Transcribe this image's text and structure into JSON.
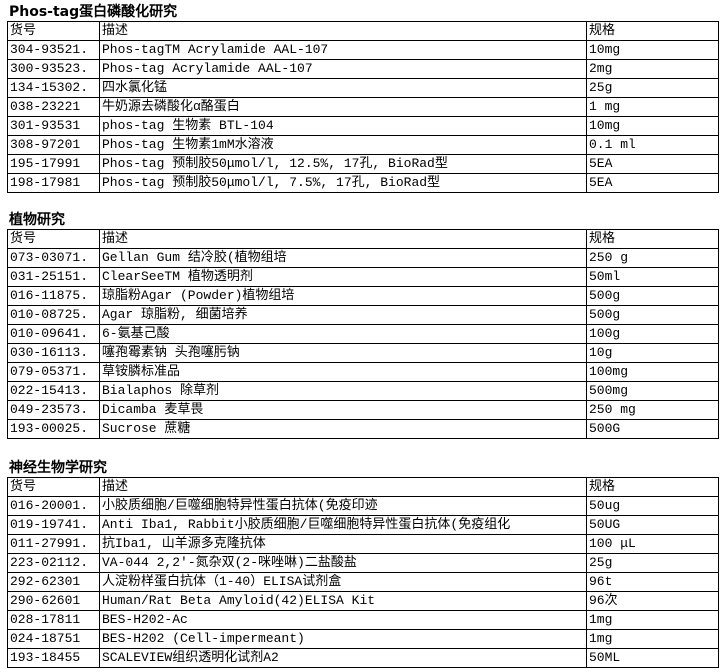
{
  "columns": {
    "code": "货号",
    "desc": "描述",
    "spec": "规格"
  },
  "sections": [
    {
      "title": "Phos-tag蛋白磷酸化研究",
      "rows": [
        [
          "304-93521.",
          "Phos-tagTM Acrylamide AAL-107",
          "10mg"
        ],
        [
          "300-93523.",
          "Phos-tag Acrylamide AAL-107",
          "2mg"
        ],
        [
          "134-15302.",
          "四水氯化锰",
          "25g"
        ],
        [
          "038-23221",
          "牛奶源去磷酸化α酪蛋白",
          "1 mg"
        ],
        [
          "301-93531",
          "phos-tag 生物素 BTL-104",
          "10mg"
        ],
        [
          "308-97201",
          "Phos-tag 生物素1mM水溶液",
          "0.1 ml"
        ],
        [
          "195-17991",
          "Phos-tag 预制胶50μmol/l, 12.5%, 17孔, BioRad型",
          "5EA"
        ],
        [
          "198-17981",
          "Phos-tag 预制胶50μmol/l, 7.5%, 17孔, BioRad型",
          "5EA"
        ]
      ]
    },
    {
      "title": "植物研究",
      "rows": [
        [
          "073-03071.",
          "Gellan Gum 结冷胶(植物组培",
          "250 g"
        ],
        [
          "031-25151.",
          "ClearSeeTM 植物透明剂",
          "50ml"
        ],
        [
          "016-11875.",
          "琼脂粉Agar (Powder)植物组培",
          "500g"
        ],
        [
          "010-08725.",
          "Agar 琼脂粉, 细菌培养",
          "500g"
        ],
        [
          "010-09641.",
          "6-氨基己酸",
          "100g"
        ],
        [
          "030-16113.",
          "噻孢霉素钠 头孢噻肟钠",
          "10g"
        ],
        [
          "079-05371.",
          "草铵膦标准品",
          "100mg"
        ],
        [
          "022-15413.",
          "Bialaphos  除草剂",
          "500mg"
        ],
        [
          "049-23573.",
          "Dicamba 麦草畏",
          "250 mg"
        ],
        [
          "193-00025.",
          "Sucrose 蔗糖",
          "500G"
        ]
      ]
    },
    {
      "title": "神经生物学研究",
      "rows": [
        [
          "016-20001.",
          "小胶质细胞/巨噬细胞特异性蛋白抗体(免疫印迹",
          "50ug"
        ],
        [
          "019-19741.",
          "Anti Iba1, Rabbit小胶质细胞/巨噬细胞特异性蛋白抗体(免疫组化",
          "50UG"
        ],
        [
          "011-27991.",
          "抗Iba1, 山羊源多克隆抗体",
          "100 μL"
        ],
        [
          "223-02112.",
          "VA-044 2,2'-氮杂双(2-咪唑啉)二盐酸盐",
          "25g"
        ],
        [
          "292-62301",
          "人淀粉样蛋白抗体（1-40）ELISA试剂盒",
          "96t"
        ],
        [
          "290-62601",
          "Human/Rat Beta Amyloid(42)ELISA Kit",
          "96次"
        ],
        [
          "028-17811",
          "BES-H202-Ac",
          "1mg"
        ],
        [
          "024-18751",
          "BES-H202 (Cell-impermeant)",
          "1mg"
        ],
        [
          "193-18455",
          "SCALEVIEW组织透明化试剂A2",
          "50ML"
        ]
      ]
    }
  ]
}
